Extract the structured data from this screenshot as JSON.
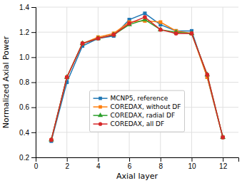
{
  "chart_data": {
    "type": "line",
    "xlabel": "Axial layer",
    "ylabel": "Normalized Axial Power",
    "x": [
      1,
      2,
      3,
      4,
      5,
      6,
      7,
      8,
      9,
      10,
      11,
      12
    ],
    "series": [
      {
        "name": "MCNP5, reference",
        "marker": "square",
        "values": [
          0.33,
          0.8,
          1.09,
          1.15,
          1.17,
          1.3,
          1.35,
          1.26,
          1.21,
          1.21,
          0.84,
          0.36
        ]
      },
      {
        "name": "COREDAX, without DF",
        "marker": "square",
        "values": [
          0.34,
          0.84,
          1.11,
          1.16,
          1.19,
          1.28,
          1.29,
          1.28,
          1.21,
          1.19,
          0.84,
          0.36
        ]
      },
      {
        "name": "COREDAX, radial DF",
        "marker": "triangle",
        "values": [
          0.34,
          0.84,
          1.11,
          1.15,
          1.18,
          1.26,
          1.3,
          1.22,
          1.2,
          1.19,
          0.86,
          0.36
        ]
      },
      {
        "name": "COREDAX, all DF",
        "marker": "circle",
        "values": [
          0.34,
          0.84,
          1.11,
          1.15,
          1.18,
          1.27,
          1.32,
          1.22,
          1.19,
          1.19,
          0.86,
          0.36
        ]
      }
    ],
    "xlim": [
      0,
      13
    ],
    "ylim": [
      0.2,
      1.4
    ],
    "xticks": [
      0,
      2,
      4,
      6,
      8,
      10,
      12
    ],
    "yticks": [
      0.2,
      0.4,
      0.6,
      0.8,
      {
        "value": 1.0,
        "label": "1.0"
      },
      1.2,
      1.4
    ],
    "grid": true,
    "legend": "lower center"
  }
}
